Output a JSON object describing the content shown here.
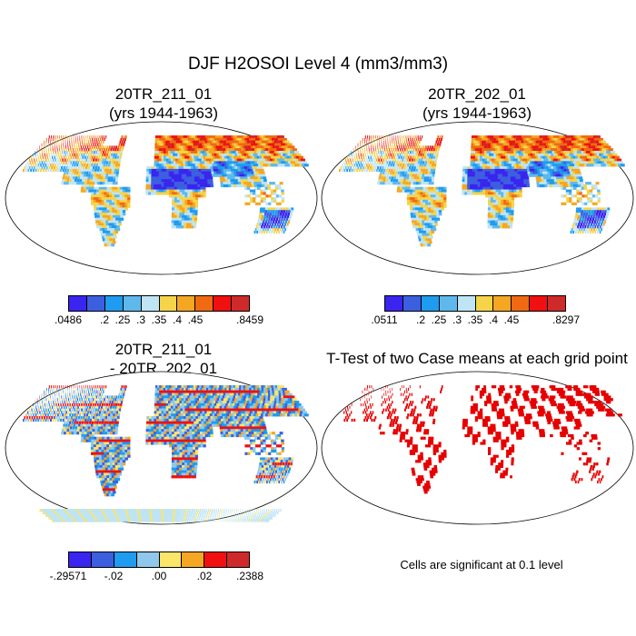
{
  "title": "DJF H2OSOI Level 4 (mm3/mm3)",
  "panels": {
    "case1": {
      "line1": "20TR_211_01",
      "line2": "(yrs 1944-1963)"
    },
    "case2": {
      "line1": "20TR_202_01",
      "line2": "(yrs 1944-1963)"
    },
    "diff": {
      "line1": "20TR_211_01",
      "line2": "- 20TR_202_01"
    },
    "ttest": {
      "line1": "T-Test of two Case means at each grid point"
    }
  },
  "note": "Cells are significant at 0.1 level",
  "colorbars": {
    "case1": {
      "colors": [
        "#3a24ef",
        "#3c5fe0",
        "#1f9bef",
        "#5eb8ec",
        "#bfe4f4",
        "#f5d44a",
        "#f5a623",
        "#ef6a12",
        "#f01010",
        "#cf2a2a"
      ],
      "labels": [
        ".0486",
        ".2",
        ".25",
        ".3",
        ".35",
        ".4",
        ".45",
        ".8459"
      ],
      "label_positions": [
        0,
        2,
        3,
        4,
        5,
        6,
        7,
        10
      ]
    },
    "case2": {
      "colors": [
        "#3a24ef",
        "#3c5fe0",
        "#1f9bef",
        "#5eb8ec",
        "#bfe4f4",
        "#f5d44a",
        "#f5a623",
        "#ef6a12",
        "#f01010",
        "#cf2a2a"
      ],
      "labels": [
        ".0511",
        ".2",
        ".25",
        ".3",
        ".35",
        ".4",
        ".45",
        ".8297"
      ],
      "label_positions": [
        0,
        2,
        3,
        4,
        5,
        6,
        7,
        10
      ]
    },
    "diff": {
      "colors": [
        "#3a24ef",
        "#3c5fe0",
        "#1f9bef",
        "#8fc8ea",
        "#fbe56a",
        "#f5a623",
        "#f01010",
        "#cf2a2a"
      ],
      "labels": [
        "-.29571",
        "-.02",
        ".00",
        ".02",
        ".2388"
      ],
      "label_positions": [
        0,
        2,
        4,
        6,
        8
      ]
    }
  },
  "map_colors": {
    "ocean": "#ffffff",
    "outline": "#000000",
    "significant": "#e60000"
  }
}
